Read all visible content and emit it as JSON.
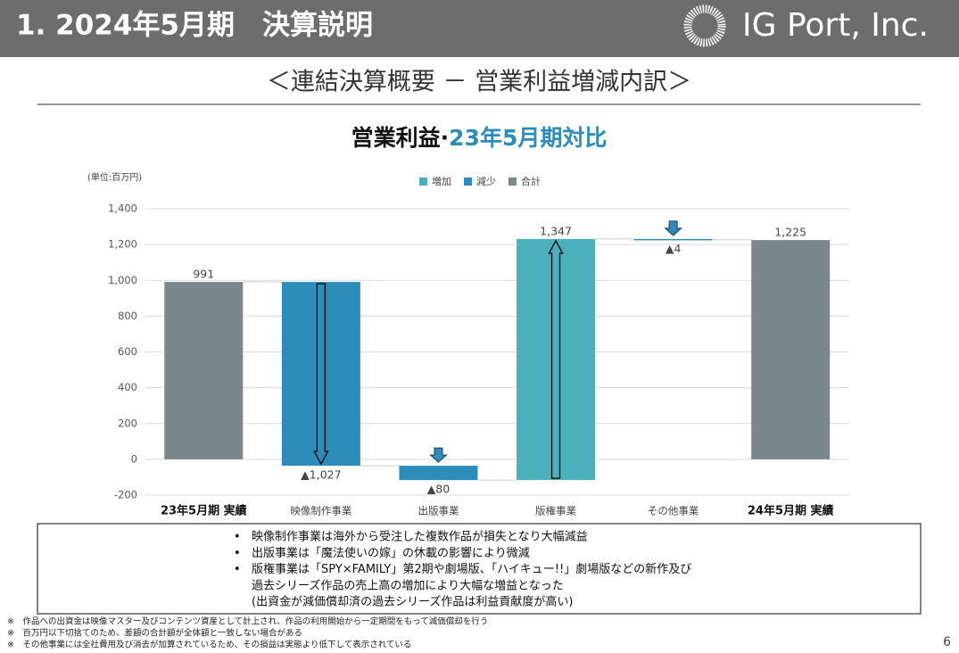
{
  "header": {
    "title": "1. 2024年5月期　決算説明",
    "logo": "IG Port, Inc."
  },
  "subtitle": "＜連結決算概要 － 営業利益増減内訳＞",
  "chart_data": {
    "type": "waterfall",
    "title": [
      "営業利益·",
      "23年5月期対比"
    ],
    "unit": "(単位:百万円)",
    "legend": [
      {
        "name": "増加",
        "color": "#4bb0bb"
      },
      {
        "name": "減少",
        "color": "#2e8cba"
      },
      {
        "name": "合計",
        "color": "#7a878c"
      }
    ],
    "categories": [
      "23年5月期 実績",
      "映像制作事業",
      "出版事業",
      "版権事業",
      "その他事業",
      "24年5月期 実績"
    ],
    "values": [
      991,
      -1027,
      -80,
      1347,
      -4,
      1225
    ],
    "value_labels": [
      "991",
      "▲1,027",
      "▲80",
      "1,347",
      "▲4",
      "1,225"
    ],
    "ylim": [
      -200,
      1400
    ],
    "yticks": [
      -200,
      0,
      200,
      400,
      600,
      800,
      {
        "value": 1000,
        "label": "1,000"
      },
      {
        "value": 1200,
        "label": "1,200"
      },
      {
        "value": 1400,
        "label": "1,400"
      }
    ],
    "grid": true
  },
  "notes": {
    "bullets": [
      [
        "映像制作事業は海外から受注した複数作品が損失となり大幅減益"
      ],
      [
        "出版事業は「魔法使いの嫁」の休載の影響により微減"
      ],
      [
        "版権事業は「SPY×FAMILY」第2期や劇場版、「ハイキュー!!」劇場版などの新作及び",
        "過去シリーズ作品の売上高の増加により大幅な増益となった",
        "(出資金が減価償却済の過去シリーズ作品は利益貢献度が高い)"
      ]
    ]
  },
  "footnotes": [
    "※　作品への出資金は映像マスター及びコンテンツ資産として計上され、作品の利用開始から一定期間をもって減価償却を行う",
    "※　百万円以下切捨てのため、差額の合計額が全体額と一致しない場合がある",
    "※　その他事業には全社費用及び消去が加算されているため、その損益は実態より低下して表示されている"
  ],
  "page_number": "6"
}
